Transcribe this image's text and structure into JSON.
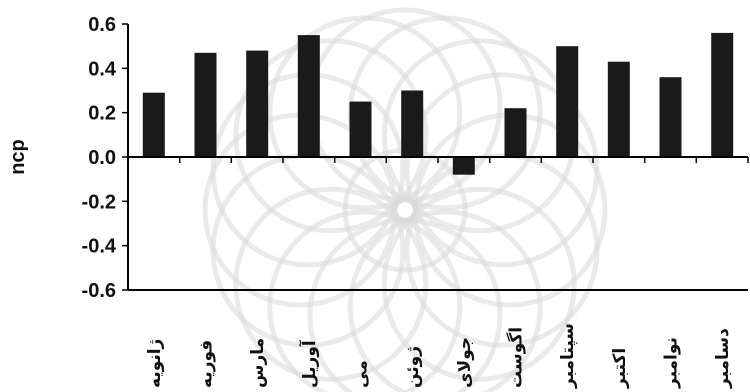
{
  "chart_data": {
    "type": "bar",
    "categories": [
      "ژانویه",
      "فوریه",
      "مارس",
      "آوریل",
      "می",
      "ژوئن",
      "جولای",
      "اگوست",
      "سپتامبر",
      "اکتبر",
      "نوامبر",
      "دسامبر"
    ],
    "values": [
      0.29,
      0.47,
      0.48,
      0.55,
      0.25,
      0.3,
      -0.08,
      0.22,
      0.5,
      0.43,
      0.36,
      0.56
    ],
    "title": "",
    "xlabel": "",
    "ylabel": "ncp",
    "ylim": [
      -0.6,
      0.6
    ],
    "yticks": [
      0.6,
      0.4,
      0.2,
      0.0,
      -0.2,
      -0.4,
      -0.6
    ],
    "ytick_labels": [
      "0.6",
      "0.4",
      "0.2",
      "0.0",
      "-0.2",
      "-0.4",
      "-0.6"
    ],
    "bar_color": "#1a1a1a",
    "grid": false
  },
  "colors": {
    "bar": "#1a1a1a",
    "axis": "#000000",
    "watermark": "#d9d9d9"
  }
}
